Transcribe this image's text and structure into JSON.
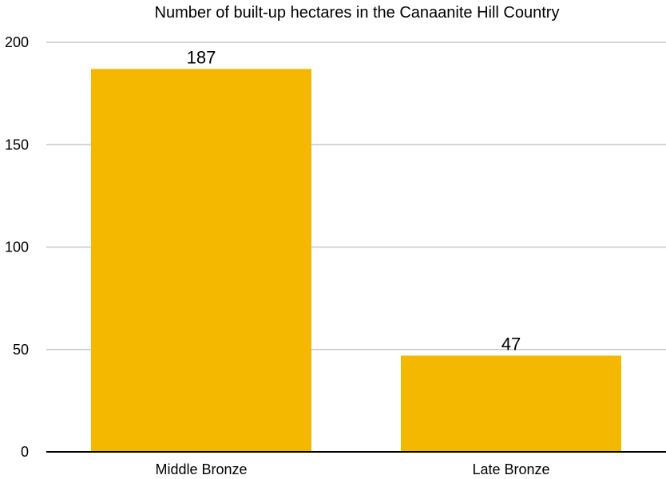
{
  "chart_data": {
    "type": "bar",
    "title": "Number of built-up hectares in the Canaanite Hill Country",
    "xlabel": "",
    "ylabel": "",
    "categories": [
      "Middle Bronze",
      "Late Bronze"
    ],
    "values": [
      187,
      47
    ],
    "data_labels": [
      "187",
      "47"
    ],
    "ylim": [
      0,
      200
    ],
    "yticks": [
      0,
      50,
      100,
      150,
      200
    ],
    "ytick_labels": [
      "0",
      "50",
      "100",
      "150",
      "200"
    ],
    "grid": true,
    "legend": "none",
    "bar_color": "#F5B800",
    "gridline_color": "#C8C8C8"
  }
}
